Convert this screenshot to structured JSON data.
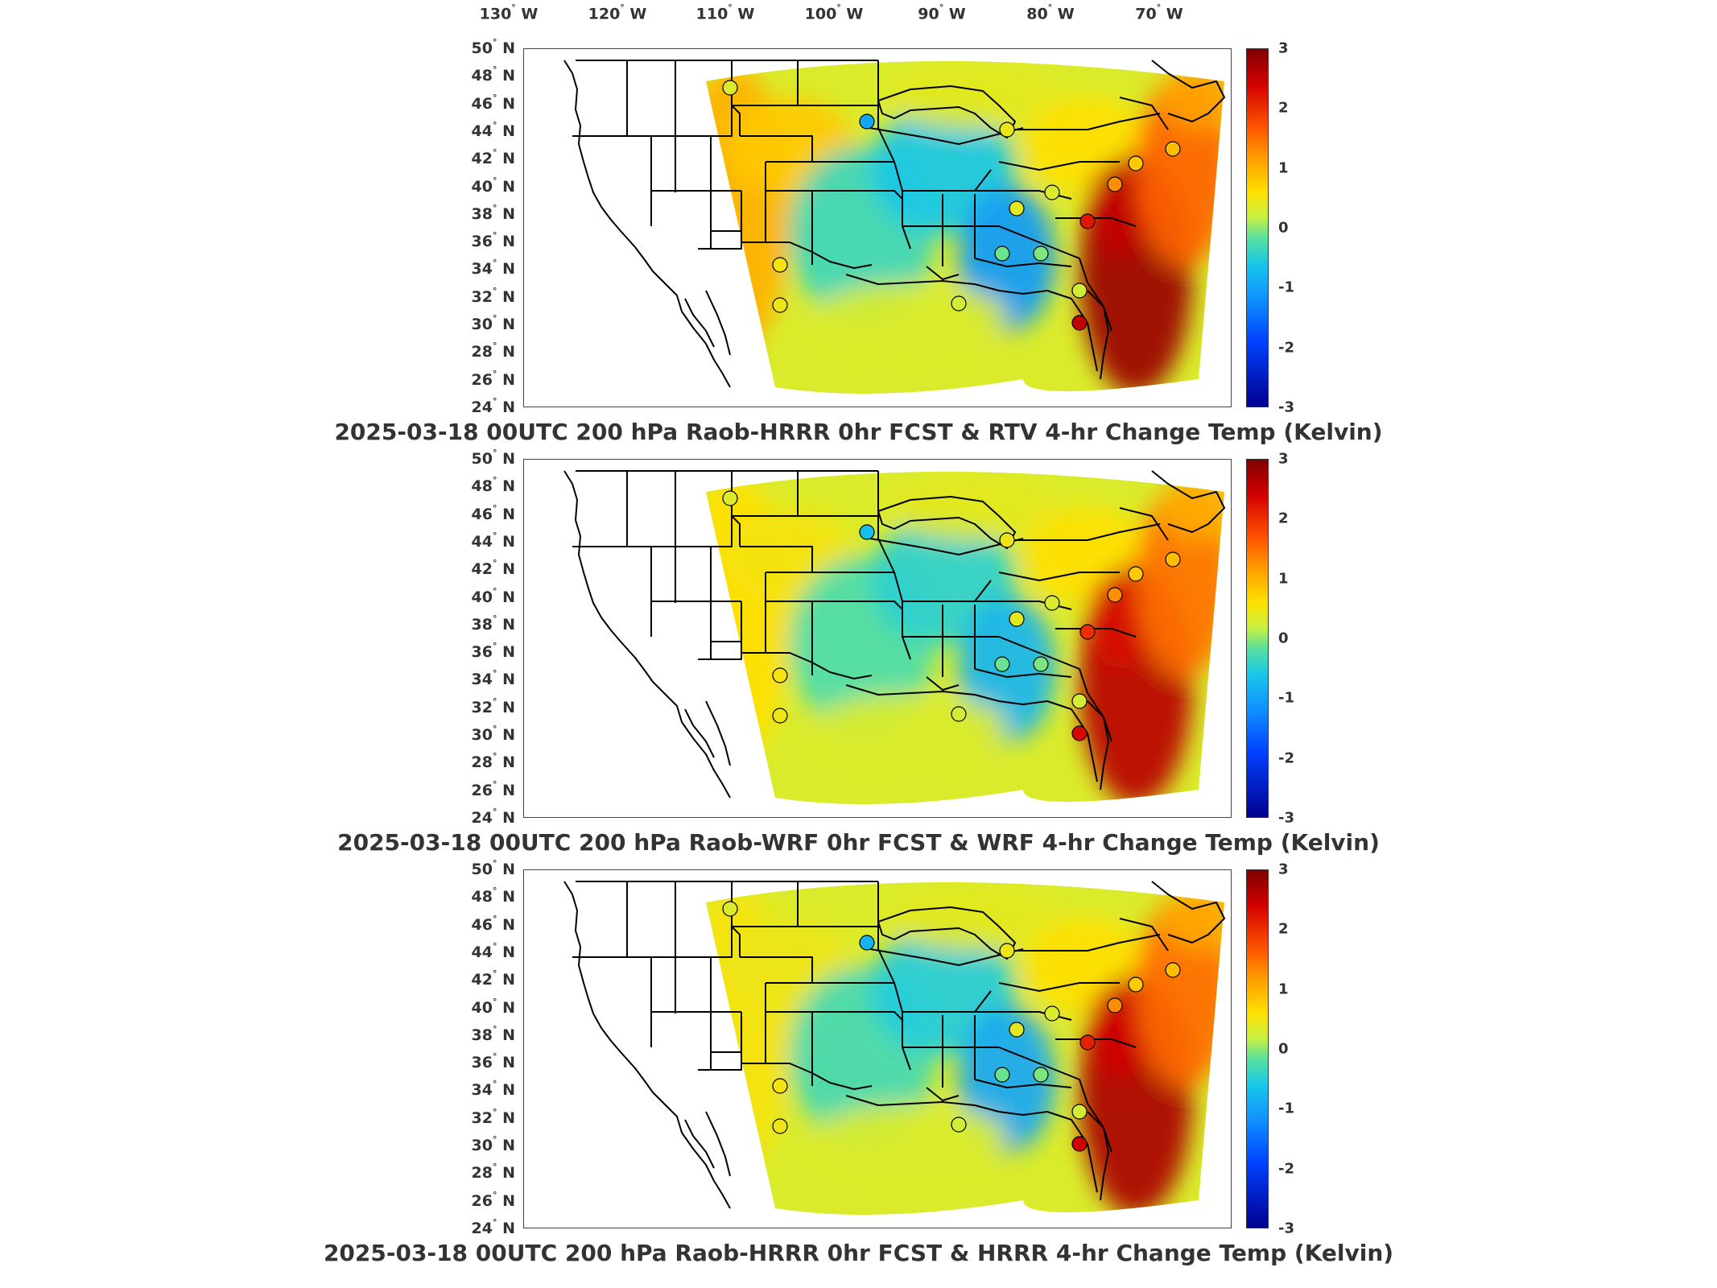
{
  "longitude_labels": [
    "130",
    "120",
    "110",
    "100",
    "90",
    "80",
    "70"
  ],
  "longitude_suffix": "W",
  "latitude_labels": [
    "50",
    "48",
    "46",
    "44",
    "42",
    "40",
    "38",
    "36",
    "34",
    "32",
    "30",
    "28",
    "26",
    "24"
  ],
  "latitude_suffix": "N",
  "degree_symbol": "°",
  "colorbar_ticks": [
    "3",
    "2",
    "1",
    "0",
    "-1",
    "-2",
    "-3"
  ],
  "colorbar_range": [
    -3,
    3
  ],
  "colorbar_colors": [
    "#00008f",
    "#0040ff",
    "#1090ff",
    "#18c8e8",
    "#56e0a0",
    "#c8f040",
    "#ffe000",
    "#ff9a00",
    "#ff5500",
    "#d40000",
    "#7f0000"
  ],
  "panels": [
    {
      "title": "2025-03-18 00UTC 200 hPa Raob-HRRR 0hr FCST & RTV 4-hr Change Temp (Kelvin)",
      "east_coast_value": 2.8,
      "plains_value": -1.2,
      "west_value": 1.0
    },
    {
      "title": "2025-03-18 00UTC 200 hPa Raob-WRF 0hr FCST & WRF 4-hr Change Temp (Kelvin)",
      "east_coast_value": 2.6,
      "plains_value": -1.0,
      "west_value": 0.6
    },
    {
      "title": "2025-03-18 00UTC 200 hPa Raob-HRRR 0hr FCST & HRRR 4-hr Change Temp (Kelvin)",
      "east_coast_value": 2.7,
      "plains_value": -1.1,
      "west_value": 0.5
    }
  ]
}
